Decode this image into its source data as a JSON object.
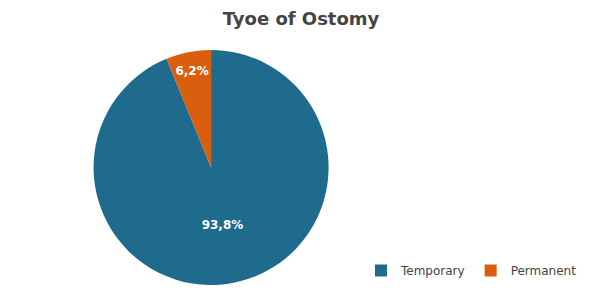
{
  "chart_data": {
    "type": "pie",
    "title": "Tyoe of Ostomy",
    "categories": [
      "Temporary",
      "Permanent"
    ],
    "values": [
      93.8,
      6.2
    ],
    "value_labels": [
      "93,8%",
      "6,2%"
    ],
    "colors": [
      "#1f6b8e",
      "#d95f0e"
    ],
    "data_labels": true,
    "legend": "lower right"
  }
}
